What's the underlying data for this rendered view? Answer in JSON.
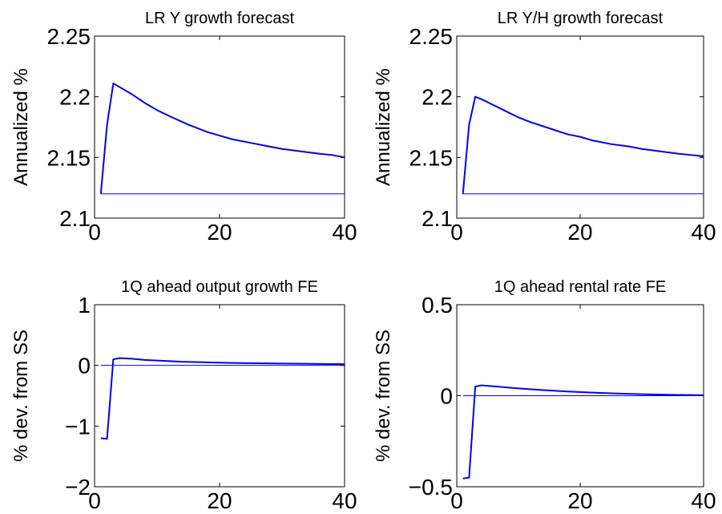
{
  "chart_data": [
    {
      "type": "line",
      "title": "LR Y growth forecast",
      "xlabel": "",
      "ylabel": "Annualized %",
      "xlim": [
        0,
        40
      ],
      "ylim": [
        2.1,
        2.25
      ],
      "xticks": [
        0,
        20,
        40
      ],
      "yticks": [
        2.1,
        2.15,
        2.2,
        2.25
      ],
      "xtick_labels": [
        "0",
        "20",
        "40"
      ],
      "ytick_labels": [
        "2.1",
        "2.15",
        "2.2",
        "2.25"
      ],
      "grid": false,
      "series": [
        {
          "x": [
            1,
            2,
            3,
            4,
            6,
            8,
            10,
            12,
            15,
            18,
            20,
            22,
            25,
            28,
            30,
            33,
            36,
            38,
            40
          ],
          "values": [
            2.12,
            2.177,
            2.211,
            2.208,
            2.202,
            2.195,
            2.189,
            2.184,
            2.177,
            2.171,
            2.168,
            2.165,
            2.162,
            2.159,
            2.157,
            2.155,
            2.153,
            2.152,
            2.15
          ],
          "color": "#0000ee",
          "width": 2
        },
        {
          "x": [
            1,
            40
          ],
          "values": [
            2.12,
            2.12
          ],
          "color": "#0000ee",
          "width": 1
        }
      ]
    },
    {
      "type": "line",
      "title": "LR Y/H growth forecast",
      "xlabel": "",
      "ylabel": "Annualized %",
      "xlim": [
        0,
        40
      ],
      "ylim": [
        2.1,
        2.25
      ],
      "xticks": [
        0,
        20,
        40
      ],
      "yticks": [
        2.1,
        2.15,
        2.2,
        2.25
      ],
      "xtick_labels": [
        "0",
        "20",
        "40"
      ],
      "ytick_labels": [
        "2.1",
        "2.15",
        "2.2",
        "2.25"
      ],
      "grid": false,
      "series": [
        {
          "x": [
            1,
            2,
            3,
            4,
            6,
            8,
            10,
            12,
            15,
            18,
            20,
            22,
            25,
            28,
            30,
            33,
            36,
            38,
            40
          ],
          "values": [
            2.12,
            2.177,
            2.2,
            2.198,
            2.193,
            2.188,
            2.183,
            2.179,
            2.174,
            2.169,
            2.167,
            2.164,
            2.161,
            2.159,
            2.157,
            2.155,
            2.153,
            2.152,
            2.151
          ],
          "color": "#0000ee",
          "width": 2
        },
        {
          "x": [
            1,
            40
          ],
          "values": [
            2.12,
            2.12
          ],
          "color": "#0000ee",
          "width": 1
        }
      ]
    },
    {
      "type": "line",
      "title": "1Q ahead output growth FE",
      "xlabel": "",
      "ylabel": "% dev. from SS",
      "xlim": [
        0,
        40
      ],
      "ylim": [
        -2,
        1
      ],
      "xticks": [
        0,
        20,
        40
      ],
      "yticks": [
        -2,
        -1,
        0,
        1
      ],
      "xtick_labels": [
        "0",
        "20",
        "40"
      ],
      "ytick_labels": [
        "−2",
        "−1",
        "0",
        "1"
      ],
      "grid": false,
      "series": [
        {
          "x": [
            1,
            2,
            3,
            4,
            6,
            8,
            10,
            14,
            18,
            22,
            26,
            30,
            35,
            40
          ],
          "values": [
            -1.2,
            -1.21,
            0.1,
            0.12,
            0.11,
            0.09,
            0.08,
            0.06,
            0.05,
            0.04,
            0.035,
            0.03,
            0.025,
            0.02
          ],
          "color": "#0000ee",
          "width": 2
        },
        {
          "x": [
            1,
            40
          ],
          "values": [
            0,
            0
          ],
          "color": "#0000ee",
          "width": 1
        }
      ]
    },
    {
      "type": "line",
      "title": "1Q ahead rental rate FE",
      "xlabel": "",
      "ylabel": "% dev. from SS",
      "xlim": [
        0,
        40
      ],
      "ylim": [
        -0.5,
        0.5
      ],
      "xticks": [
        0,
        20,
        40
      ],
      "yticks": [
        -0.5,
        0,
        0.5
      ],
      "xtick_labels": [
        "0",
        "20",
        "40"
      ],
      "ytick_labels": [
        "−0.5",
        "0",
        "0.5"
      ],
      "grid": false,
      "series": [
        {
          "x": [
            1,
            2,
            3,
            4,
            6,
            8,
            10,
            14,
            18,
            22,
            26,
            30,
            35,
            40
          ],
          "values": [
            -0.455,
            -0.45,
            0.05,
            0.057,
            0.052,
            0.046,
            0.04,
            0.031,
            0.023,
            0.017,
            0.012,
            0.008,
            0.005,
            0.003
          ],
          "color": "#0000ee",
          "width": 2
        },
        {
          "x": [
            1,
            40
          ],
          "values": [
            0,
            0
          ],
          "color": "#0000ee",
          "width": 1
        }
      ]
    }
  ]
}
